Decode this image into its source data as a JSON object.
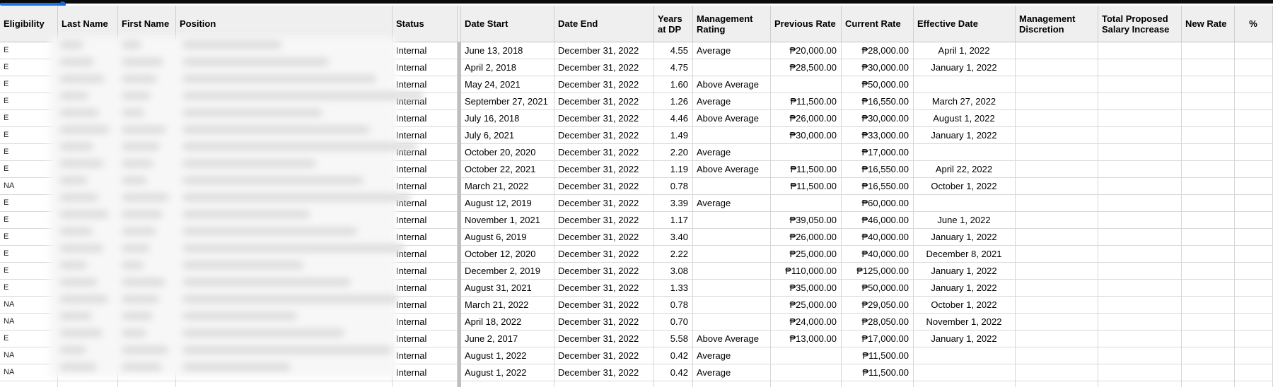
{
  "columns": [
    {
      "key": "eligibility",
      "label": "Eligibility"
    },
    {
      "key": "last_name",
      "label": "Last Name"
    },
    {
      "key": "first_name",
      "label": "First Name"
    },
    {
      "key": "position",
      "label": "Position"
    },
    {
      "key": "status",
      "label": "Status"
    },
    {
      "key": "divider",
      "label": ""
    },
    {
      "key": "date_start",
      "label": "Date Start"
    },
    {
      "key": "date_end",
      "label": "Date End"
    },
    {
      "key": "years_at_dp",
      "label": "Years at DP"
    },
    {
      "key": "management_rating",
      "label": "Management Rating"
    },
    {
      "key": "previous_rate",
      "label": "Previous Rate"
    },
    {
      "key": "current_rate",
      "label": "Current Rate"
    },
    {
      "key": "effective_date",
      "label": "Effective Date"
    },
    {
      "key": "management_discretion",
      "label": "Management Discretion"
    },
    {
      "key": "total_proposed_salary_increase",
      "label": "Total Proposed Salary Increase"
    },
    {
      "key": "new_rate",
      "label": "New Rate"
    },
    {
      "key": "percent",
      "label": "%"
    }
  ],
  "rows": [
    {
      "eligibility": "E",
      "last_name": "",
      "first_name": "",
      "position": "",
      "status": "Internal",
      "date_start": "June 13, 2018",
      "date_end": "December 31, 2022",
      "years_at_dp": "4.55",
      "management_rating": "Average",
      "previous_rate": "₱20,000.00",
      "current_rate": "₱28,000.00",
      "effective_date": "April 1, 2022",
      "management_discretion": "",
      "total_proposed_salary_increase": "",
      "new_rate": "",
      "percent": ""
    },
    {
      "eligibility": "E",
      "last_name": "",
      "first_name": "",
      "position": "",
      "status": "Internal",
      "date_start": "April 2, 2018",
      "date_end": "December 31, 2022",
      "years_at_dp": "4.75",
      "management_rating": "",
      "previous_rate": "₱28,500.00",
      "current_rate": "₱30,000.00",
      "effective_date": "January 1, 2022",
      "management_discretion": "",
      "total_proposed_salary_increase": "",
      "new_rate": "",
      "percent": ""
    },
    {
      "eligibility": "E",
      "last_name": "",
      "first_name": "",
      "position": "",
      "status": "Internal",
      "date_start": "May 24, 2021",
      "date_end": "December 31, 2022",
      "years_at_dp": "1.60",
      "management_rating": "Above Average",
      "previous_rate": "",
      "current_rate": "₱50,000.00",
      "effective_date": "",
      "management_discretion": "",
      "total_proposed_salary_increase": "",
      "new_rate": "",
      "percent": ""
    },
    {
      "eligibility": "E",
      "last_name": "",
      "first_name": "",
      "position": "",
      "status": "Internal",
      "date_start": "September 27, 2021",
      "date_end": "December 31, 2022",
      "years_at_dp": "1.26",
      "management_rating": "Average",
      "previous_rate": "₱11,500.00",
      "current_rate": "₱16,550.00",
      "effective_date": "March 27, 2022",
      "management_discretion": "",
      "total_proposed_salary_increase": "",
      "new_rate": "",
      "percent": ""
    },
    {
      "eligibility": "E",
      "last_name": "",
      "first_name": "",
      "position": "",
      "status": "Internal",
      "date_start": "July 16, 2018",
      "date_end": "December 31, 2022",
      "years_at_dp": "4.46",
      "management_rating": "Above Average",
      "previous_rate": "₱26,000.00",
      "current_rate": "₱30,000.00",
      "effective_date": "August 1, 2022",
      "management_discretion": "",
      "total_proposed_salary_increase": "",
      "new_rate": "",
      "percent": ""
    },
    {
      "eligibility": "E",
      "last_name": "",
      "first_name": "",
      "position": "",
      "status": "Internal",
      "date_start": "July 6, 2021",
      "date_end": "December 31, 2022",
      "years_at_dp": "1.49",
      "management_rating": "",
      "previous_rate": "₱30,000.00",
      "current_rate": "₱33,000.00",
      "effective_date": "January 1, 2022",
      "management_discretion": "",
      "total_proposed_salary_increase": "",
      "new_rate": "",
      "percent": ""
    },
    {
      "eligibility": "E",
      "last_name": "",
      "first_name": "",
      "position": "",
      "status": "Internal",
      "date_start": "October 20, 2020",
      "date_end": "December 31, 2022",
      "years_at_dp": "2.20",
      "management_rating": "Average",
      "previous_rate": "",
      "current_rate": "₱17,000.00",
      "effective_date": "",
      "management_discretion": "",
      "total_proposed_salary_increase": "",
      "new_rate": "",
      "percent": ""
    },
    {
      "eligibility": "E",
      "last_name": "",
      "first_name": "",
      "position": "",
      "status": "Internal",
      "date_start": "October 22, 2021",
      "date_end": "December 31, 2022",
      "years_at_dp": "1.19",
      "management_rating": "Above Average",
      "previous_rate": "₱11,500.00",
      "current_rate": "₱16,550.00",
      "effective_date": "April 22, 2022",
      "management_discretion": "",
      "total_proposed_salary_increase": "",
      "new_rate": "",
      "percent": ""
    },
    {
      "eligibility": "NA",
      "last_name": "",
      "first_name": "",
      "position": "",
      "status": "Internal",
      "date_start": "March 21, 2022",
      "date_end": "December 31, 2022",
      "years_at_dp": "0.78",
      "management_rating": "",
      "previous_rate": "₱11,500.00",
      "current_rate": "₱16,550.00",
      "effective_date": "October 1, 2022",
      "management_discretion": "",
      "total_proposed_salary_increase": "",
      "new_rate": "",
      "percent": ""
    },
    {
      "eligibility": "E",
      "last_name": "",
      "first_name": "",
      "position": "",
      "status": "Internal",
      "date_start": "August 12, 2019",
      "date_end": "December 31, 2022",
      "years_at_dp": "3.39",
      "management_rating": "Average",
      "previous_rate": "",
      "current_rate": "₱60,000.00",
      "effective_date": "",
      "management_discretion": "",
      "total_proposed_salary_increase": "",
      "new_rate": "",
      "percent": ""
    },
    {
      "eligibility": "E",
      "last_name": "",
      "first_name": "",
      "position": "",
      "status": "Internal",
      "date_start": "November 1, 2021",
      "date_end": "December 31, 2022",
      "years_at_dp": "1.17",
      "management_rating": "",
      "previous_rate": "₱39,050.00",
      "current_rate": "₱46,000.00",
      "effective_date": "June 1, 2022",
      "management_discretion": "",
      "total_proposed_salary_increase": "",
      "new_rate": "",
      "percent": ""
    },
    {
      "eligibility": "E",
      "last_name": "",
      "first_name": "",
      "position": "",
      "status": "Internal",
      "date_start": "August 6, 2019",
      "date_end": "December 31, 2022",
      "years_at_dp": "3.40",
      "management_rating": "",
      "previous_rate": "₱26,000.00",
      "current_rate": "₱40,000.00",
      "effective_date": "January 1, 2022",
      "management_discretion": "",
      "total_proposed_salary_increase": "",
      "new_rate": "",
      "percent": ""
    },
    {
      "eligibility": "E",
      "last_name": "",
      "first_name": "",
      "position": "",
      "status": "Internal",
      "date_start": "October 12, 2020",
      "date_end": "December 31, 2022",
      "years_at_dp": "2.22",
      "management_rating": "",
      "previous_rate": "₱25,000.00",
      "current_rate": "₱40,000.00",
      "effective_date": "December 8, 2021",
      "management_discretion": "",
      "total_proposed_salary_increase": "",
      "new_rate": "",
      "percent": ""
    },
    {
      "eligibility": "E",
      "last_name": "",
      "first_name": "",
      "position": "",
      "status": "Internal",
      "date_start": "December 2, 2019",
      "date_end": "December 31, 2022",
      "years_at_dp": "3.08",
      "management_rating": "",
      "previous_rate": "₱110,000.00",
      "current_rate": "₱125,000.00",
      "effective_date": "January 1, 2022",
      "management_discretion": "",
      "total_proposed_salary_increase": "",
      "new_rate": "",
      "percent": ""
    },
    {
      "eligibility": "E",
      "last_name": "",
      "first_name": "",
      "position": "",
      "status": "Internal",
      "date_start": "August 31, 2021",
      "date_end": "December 31, 2022",
      "years_at_dp": "1.33",
      "management_rating": "",
      "previous_rate": "₱35,000.00",
      "current_rate": "₱50,000.00",
      "effective_date": "January 1, 2022",
      "management_discretion": "",
      "total_proposed_salary_increase": "",
      "new_rate": "",
      "percent": ""
    },
    {
      "eligibility": "NA",
      "last_name": "",
      "first_name": "",
      "position": "",
      "status": "Internal",
      "date_start": "March 21, 2022",
      "date_end": "December 31, 2022",
      "years_at_dp": "0.78",
      "management_rating": "",
      "previous_rate": "₱25,000.00",
      "current_rate": "₱29,050.00",
      "effective_date": "October 1, 2022",
      "management_discretion": "",
      "total_proposed_salary_increase": "",
      "new_rate": "",
      "percent": ""
    },
    {
      "eligibility": "NA",
      "last_name": "",
      "first_name": "",
      "position": "",
      "status": "Internal",
      "date_start": "April 18, 2022",
      "date_end": "December 31, 2022",
      "years_at_dp": "0.70",
      "management_rating": "",
      "previous_rate": "₱24,000.00",
      "current_rate": "₱28,050.00",
      "effective_date": "November 1, 2022",
      "management_discretion": "",
      "total_proposed_salary_increase": "",
      "new_rate": "",
      "percent": ""
    },
    {
      "eligibility": "E",
      "last_name": "",
      "first_name": "",
      "position": "",
      "status": "Internal",
      "date_start": "June 2, 2017",
      "date_end": "December 31, 2022",
      "years_at_dp": "5.58",
      "management_rating": "Above Average",
      "previous_rate": "₱13,000.00",
      "current_rate": "₱17,000.00",
      "effective_date": "January 1, 2022",
      "management_discretion": "",
      "total_proposed_salary_increase": "",
      "new_rate": "",
      "percent": ""
    },
    {
      "eligibility": "NA",
      "last_name": "",
      "first_name": "",
      "position": "",
      "status": "Internal",
      "date_start": "August 1, 2022",
      "date_end": "December 31, 2022",
      "years_at_dp": "0.42",
      "management_rating": "Average",
      "previous_rate": "",
      "current_rate": "₱11,500.00",
      "effective_date": "",
      "management_discretion": "",
      "total_proposed_salary_increase": "",
      "new_rate": "",
      "percent": ""
    },
    {
      "eligibility": "NA",
      "last_name": "",
      "first_name": "",
      "position": "",
      "status": "Internal",
      "date_start": "August 1, 2022",
      "date_end": "December 31, 2022",
      "years_at_dp": "0.42",
      "management_rating": "Average",
      "previous_rate": "",
      "current_rate": "₱11,500.00",
      "effective_date": "",
      "management_discretion": "",
      "total_proposed_salary_increase": "",
      "new_rate": "",
      "percent": ""
    }
  ],
  "colors": {
    "accent_blue": "#1a73e8",
    "handle_blue": "#1967d2",
    "header_bg": "#efefef",
    "divider_gray": "#bfbfbf"
  }
}
